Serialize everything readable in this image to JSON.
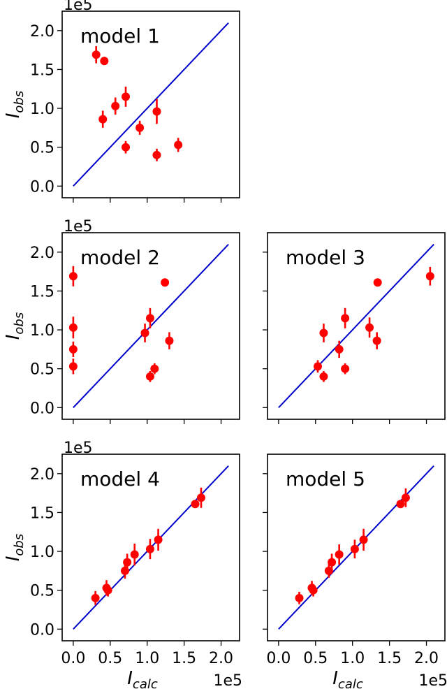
{
  "chart_data": [
    {
      "type": "scatter",
      "title": "model 1",
      "xlabel": "",
      "ylabel": "I",
      "ylabel_sub": "obs",
      "y_exponent_label": "1e5",
      "x_exponent_label": "",
      "xlim": [
        -15000,
        225000
      ],
      "ylim": [
        -15000,
        225000
      ],
      "x_ticks": [
        0,
        50000,
        100000,
        150000,
        200000
      ],
      "y_ticks": [
        0,
        50000,
        100000,
        150000,
        200000
      ],
      "x_tick_labels": [],
      "y_tick_labels": [
        "0.0",
        "0.5",
        "1.0",
        "1.5",
        "2.0"
      ],
      "identity_line": [
        0,
        210000
      ],
      "colors": {
        "points": "#ff0000",
        "line": "#0000cc"
      },
      "points": [
        {
          "x": 31000,
          "y": 169000,
          "err": 11000
        },
        {
          "x": 42000,
          "y": 161000,
          "err": 0
        },
        {
          "x": 40000,
          "y": 86000,
          "err": 11000
        },
        {
          "x": 57000,
          "y": 103000,
          "err": 11000
        },
        {
          "x": 71000,
          "y": 115000,
          "err": 13000
        },
        {
          "x": 71000,
          "y": 50000,
          "err": 8000
        },
        {
          "x": 90000,
          "y": 75000,
          "err": 9000
        },
        {
          "x": 113000,
          "y": 96000,
          "err": 16000
        },
        {
          "x": 113000,
          "y": 40000,
          "err": 8000
        },
        {
          "x": 142000,
          "y": 53000,
          "err": 9000
        }
      ]
    },
    {
      "type": "scatter",
      "title": "model 2",
      "xlabel": "",
      "ylabel": "I",
      "ylabel_sub": "obs",
      "y_exponent_label": "1e5",
      "x_exponent_label": "",
      "xlim": [
        -15000,
        225000
      ],
      "ylim": [
        -15000,
        225000
      ],
      "x_ticks": [
        0,
        50000,
        100000,
        150000,
        200000
      ],
      "y_ticks": [
        0,
        50000,
        100000,
        150000,
        200000
      ],
      "x_tick_labels": [],
      "y_tick_labels": [
        "0.0",
        "0.5",
        "1.0",
        "1.5",
        "2.0"
      ],
      "identity_line": [
        0,
        210000
      ],
      "colors": {
        "points": "#ff0000",
        "line": "#0000cc"
      },
      "points": [
        {
          "x": 0,
          "y": 169000,
          "err": 13000
        },
        {
          "x": 0,
          "y": 103000,
          "err": 14000
        },
        {
          "x": 0,
          "y": 75000,
          "err": 10000
        },
        {
          "x": 0,
          "y": 53000,
          "err": 10000
        },
        {
          "x": 97000,
          "y": 96000,
          "err": 12000
        },
        {
          "x": 104000,
          "y": 115000,
          "err": 13000
        },
        {
          "x": 104000,
          "y": 40000,
          "err": 7000
        },
        {
          "x": 110000,
          "y": 50000,
          "err": 7000
        },
        {
          "x": 124000,
          "y": 161000,
          "err": 0
        },
        {
          "x": 130000,
          "y": 86000,
          "err": 11000
        }
      ]
    },
    {
      "type": "scatter",
      "title": "model 3",
      "xlabel": "",
      "ylabel": "",
      "ylabel_sub": "",
      "y_exponent_label": "",
      "x_exponent_label": "",
      "xlim": [
        -15000,
        225000
      ],
      "ylim": [
        -15000,
        225000
      ],
      "x_ticks": [
        0,
        50000,
        100000,
        150000,
        200000
      ],
      "y_ticks": [
        0,
        50000,
        100000,
        150000,
        200000
      ],
      "x_tick_labels": [],
      "y_tick_labels": [],
      "identity_line": [
        0,
        210000
      ],
      "colors": {
        "points": "#ff0000",
        "line": "#0000cc"
      },
      "points": [
        {
          "x": 53000,
          "y": 53000,
          "err": 8000
        },
        {
          "x": 61000,
          "y": 40000,
          "err": 7000
        },
        {
          "x": 61000,
          "y": 96000,
          "err": 12000
        },
        {
          "x": 82000,
          "y": 75000,
          "err": 11000
        },
        {
          "x": 90000,
          "y": 115000,
          "err": 13000
        },
        {
          "x": 90000,
          "y": 50000,
          "err": 7000
        },
        {
          "x": 123000,
          "y": 103000,
          "err": 13000
        },
        {
          "x": 133000,
          "y": 86000,
          "err": 11000
        },
        {
          "x": 134000,
          "y": 161000,
          "err": 0
        },
        {
          "x": 205000,
          "y": 169000,
          "err": 12000
        }
      ]
    },
    {
      "type": "scatter",
      "title": "model 4",
      "xlabel": "I",
      "xlabel_sub": "calc",
      "ylabel": "I",
      "ylabel_sub": "obs",
      "y_exponent_label": "1e5",
      "x_exponent_label": "1e5",
      "xlim": [
        -15000,
        225000
      ],
      "ylim": [
        -15000,
        225000
      ],
      "x_ticks": [
        0,
        50000,
        100000,
        150000,
        200000
      ],
      "y_ticks": [
        0,
        50000,
        100000,
        150000,
        200000
      ],
      "x_tick_labels": [
        "0.0",
        "0.5",
        "1.0",
        "1.5",
        "2.0"
      ],
      "y_tick_labels": [
        "0.0",
        "0.5",
        "1.0",
        "1.5",
        "2.0"
      ],
      "identity_line": [
        0,
        210000
      ],
      "colors": {
        "points": "#ff0000",
        "line": "#0000cc"
      },
      "points": [
        {
          "x": 30000,
          "y": 40000,
          "err": 9000
        },
        {
          "x": 45000,
          "y": 53000,
          "err": 10000
        },
        {
          "x": 47000,
          "y": 50000,
          "err": 8000
        },
        {
          "x": 70000,
          "y": 75000,
          "err": 10000
        },
        {
          "x": 73000,
          "y": 86000,
          "err": 11000
        },
        {
          "x": 83000,
          "y": 96000,
          "err": 14000
        },
        {
          "x": 104000,
          "y": 103000,
          "err": 13000
        },
        {
          "x": 115000,
          "y": 115000,
          "err": 14000
        },
        {
          "x": 165000,
          "y": 161000,
          "err": 0
        },
        {
          "x": 173000,
          "y": 169000,
          "err": 13000
        }
      ]
    },
    {
      "type": "scatter",
      "title": "model 5",
      "xlabel": "I",
      "xlabel_sub": "calc",
      "ylabel": "",
      "ylabel_sub": "",
      "y_exponent_label": "",
      "x_exponent_label": "1e5",
      "xlim": [
        -15000,
        225000
      ],
      "ylim": [
        -15000,
        225000
      ],
      "x_ticks": [
        0,
        50000,
        100000,
        150000,
        200000
      ],
      "y_ticks": [
        0,
        50000,
        100000,
        150000,
        200000
      ],
      "x_tick_labels": [
        "0.0",
        "0.5",
        "1.0",
        "1.5",
        "2.0"
      ],
      "y_tick_labels": [],
      "identity_line": [
        0,
        210000
      ],
      "colors": {
        "points": "#ff0000",
        "line": "#0000cc"
      },
      "points": [
        {
          "x": 28000,
          "y": 40000,
          "err": 8000
        },
        {
          "x": 45000,
          "y": 53000,
          "err": 9000
        },
        {
          "x": 47000,
          "y": 50000,
          "err": 8000
        },
        {
          "x": 68000,
          "y": 75000,
          "err": 9000
        },
        {
          "x": 72000,
          "y": 86000,
          "err": 11000
        },
        {
          "x": 82000,
          "y": 96000,
          "err": 13000
        },
        {
          "x": 103000,
          "y": 103000,
          "err": 12000
        },
        {
          "x": 115000,
          "y": 115000,
          "err": 14000
        },
        {
          "x": 165000,
          "y": 161000,
          "err": 0
        },
        {
          "x": 172000,
          "y": 169000,
          "err": 12000
        }
      ]
    }
  ]
}
